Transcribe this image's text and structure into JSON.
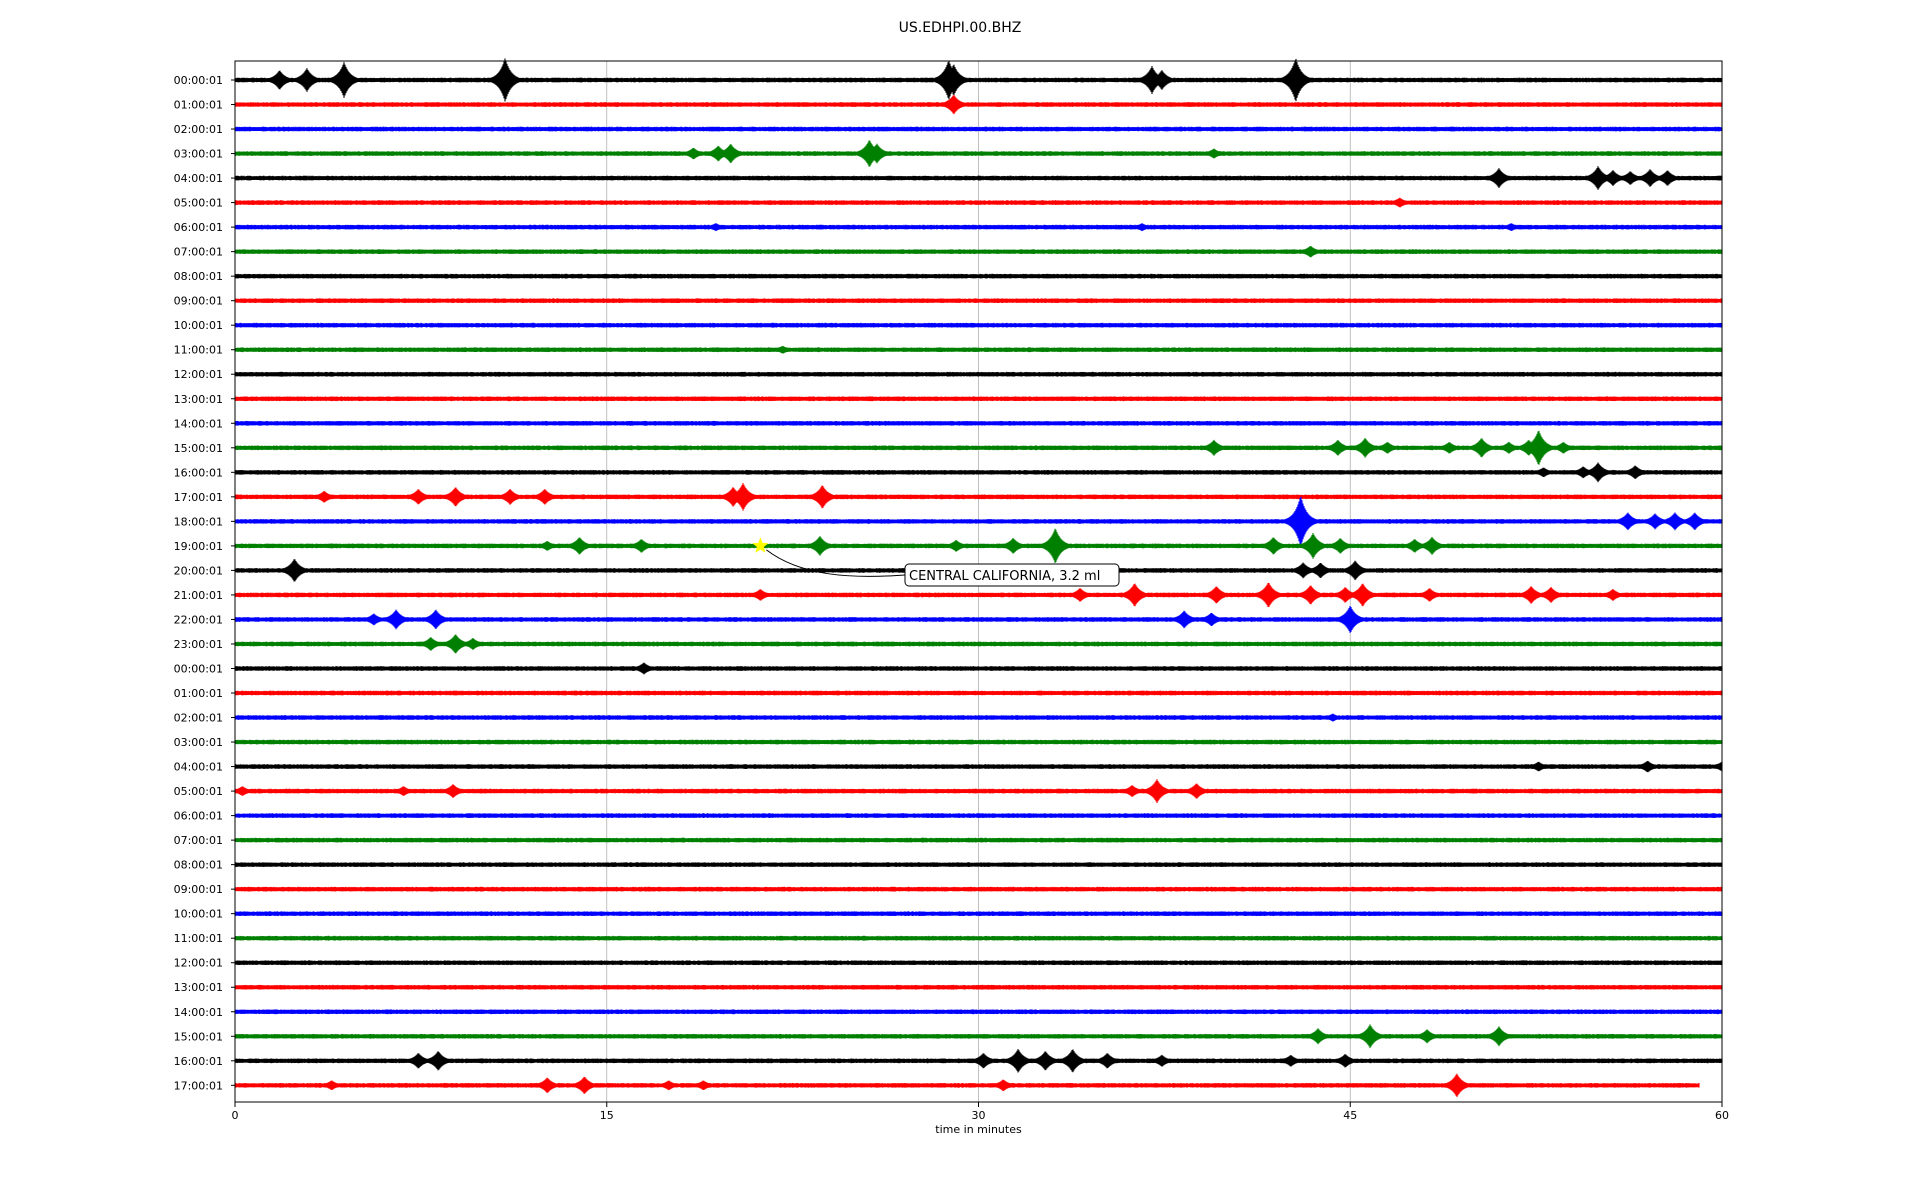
{
  "page": {
    "title": "US.EDHPI.00.BHZ"
  },
  "chart_data": {
    "type": "line",
    "title": "US.EDHPI.00.BHZ",
    "xlabel": "time in minutes",
    "ylabel": "",
    "xlim": [
      0,
      60
    ],
    "xticks": [
      0,
      15,
      30,
      45,
      60
    ],
    "grid": "vertical lines at 15, 30, 45",
    "colors": [
      "#000000",
      "#ff0000",
      "#0000ff",
      "#008000"
    ],
    "rows": [
      {
        "label": "00:00:01",
        "events": [
          [
            1.8,
            10
          ],
          [
            2.9,
            12
          ],
          [
            4.4,
            18
          ],
          [
            10.9,
            22
          ],
          [
            28.8,
            20
          ],
          [
            29.0,
            16
          ],
          [
            37.0,
            14
          ],
          [
            37.4,
            10
          ],
          [
            42.8,
            22
          ]
        ]
      },
      {
        "label": "01:00:01",
        "events": [
          [
            29.0,
            10
          ]
        ]
      },
      {
        "label": "02:00:01",
        "events": []
      },
      {
        "label": "03:00:01",
        "events": [
          [
            18.5,
            6
          ],
          [
            19.5,
            8
          ],
          [
            20.0,
            10
          ],
          [
            25.6,
            14
          ],
          [
            25.9,
            10
          ],
          [
            39.5,
            5
          ]
        ]
      },
      {
        "label": "04:00:01",
        "events": [
          [
            51.0,
            10
          ],
          [
            55.0,
            12
          ],
          [
            55.6,
            8
          ],
          [
            56.3,
            7
          ],
          [
            57.1,
            9
          ],
          [
            57.8,
            8
          ]
        ]
      },
      {
        "label": "05:00:01",
        "events": [
          [
            47.0,
            5
          ]
        ]
      },
      {
        "label": "06:00:01",
        "events": [
          [
            19.4,
            4
          ],
          [
            36.6,
            4
          ],
          [
            51.5,
            4
          ]
        ]
      },
      {
        "label": "07:00:01",
        "events": [
          [
            43.4,
            6
          ]
        ]
      },
      {
        "label": "08:00:01",
        "events": []
      },
      {
        "label": "09:00:01",
        "events": []
      },
      {
        "label": "10:00:01",
        "events": []
      },
      {
        "label": "11:00:01",
        "events": [
          [
            22.1,
            4
          ]
        ]
      },
      {
        "label": "12:00:01",
        "events": []
      },
      {
        "label": "13:00:01",
        "events": []
      },
      {
        "label": "14:00:01",
        "events": []
      },
      {
        "label": "15:00:01",
        "events": [
          [
            39.5,
            8
          ],
          [
            44.5,
            8
          ],
          [
            45.6,
            10
          ],
          [
            46.5,
            6
          ],
          [
            49.0,
            6
          ],
          [
            50.3,
            10
          ],
          [
            51.4,
            6
          ],
          [
            52.2,
            8
          ],
          [
            52.6,
            18
          ],
          [
            53.6,
            6
          ]
        ]
      },
      {
        "label": "16:00:01",
        "events": [
          [
            52.8,
            5
          ],
          [
            54.4,
            6
          ],
          [
            55.0,
            10
          ],
          [
            56.5,
            7
          ]
        ]
      },
      {
        "label": "17:00:01",
        "events": [
          [
            3.6,
            6
          ],
          [
            7.4,
            8
          ],
          [
            8.9,
            10
          ],
          [
            11.1,
            8
          ],
          [
            12.5,
            8
          ],
          [
            20.1,
            10
          ],
          [
            20.5,
            14
          ],
          [
            23.7,
            12
          ]
        ]
      },
      {
        "label": "18:00:01",
        "events": [
          [
            43.0,
            26
          ],
          [
            56.2,
            9
          ],
          [
            57.3,
            8
          ],
          [
            58.1,
            9
          ],
          [
            58.9,
            9
          ]
        ]
      },
      {
        "label": "19:00:01",
        "events": [
          [
            12.6,
            5
          ],
          [
            13.9,
            9
          ],
          [
            16.4,
            7
          ],
          [
            23.6,
            10
          ],
          [
            29.1,
            6
          ],
          [
            31.4,
            8
          ],
          [
            33.1,
            18
          ],
          [
            41.9,
            9
          ],
          [
            43.5,
            13
          ],
          [
            44.6,
            8
          ],
          [
            47.6,
            7
          ],
          [
            48.3,
            9
          ]
        ]
      },
      {
        "label": "20:00:01",
        "events": [
          [
            2.4,
            12
          ],
          [
            43.1,
            8
          ],
          [
            43.8,
            8
          ],
          [
            45.2,
            10
          ]
        ]
      },
      {
        "label": "21:00:01",
        "events": [
          [
            21.2,
            6
          ],
          [
            34.1,
            7
          ],
          [
            36.3,
            12
          ],
          [
            39.6,
            9
          ],
          [
            41.7,
            13
          ],
          [
            43.4,
            10
          ],
          [
            44.8,
            8
          ],
          [
            45.5,
            12
          ],
          [
            48.2,
            7
          ],
          [
            52.3,
            9
          ],
          [
            53.1,
            8
          ],
          [
            55.6,
            6
          ]
        ]
      },
      {
        "label": "22:00:01",
        "events": [
          [
            5.6,
            6
          ],
          [
            6.5,
            10
          ],
          [
            8.1,
            10
          ],
          [
            38.3,
            9
          ],
          [
            39.4,
            7
          ],
          [
            45.0,
            14
          ]
        ]
      },
      {
        "label": "23:00:01",
        "events": [
          [
            7.9,
            7
          ],
          [
            8.9,
            10
          ],
          [
            9.6,
            6
          ]
        ]
      },
      {
        "label": "00:00:01",
        "events": [
          [
            16.5,
            6
          ]
        ]
      },
      {
        "label": "01:00:01",
        "events": []
      },
      {
        "label": "02:00:01",
        "events": [
          [
            44.3,
            4
          ]
        ]
      },
      {
        "label": "03:00:01",
        "events": []
      },
      {
        "label": "04:00:01",
        "events": [
          [
            52.6,
            5
          ],
          [
            57.0,
            6
          ],
          [
            60.0,
            5
          ]
        ]
      },
      {
        "label": "05:00:01",
        "events": [
          [
            0.3,
            5
          ],
          [
            6.8,
            5
          ],
          [
            8.8,
            7
          ],
          [
            36.2,
            6
          ],
          [
            37.2,
            12
          ],
          [
            38.8,
            8
          ]
        ]
      },
      {
        "label": "06:00:01",
        "events": []
      },
      {
        "label": "07:00:01",
        "events": []
      },
      {
        "label": "08:00:01",
        "events": []
      },
      {
        "label": "09:00:01",
        "events": []
      },
      {
        "label": "10:00:01",
        "events": []
      },
      {
        "label": "11:00:01",
        "events": []
      },
      {
        "label": "12:00:01",
        "events": []
      },
      {
        "label": "13:00:01",
        "events": []
      },
      {
        "label": "14:00:01",
        "events": []
      },
      {
        "label": "15:00:01",
        "events": [
          [
            43.7,
            8
          ],
          [
            45.8,
            12
          ],
          [
            48.1,
            7
          ],
          [
            51.0,
            10
          ]
        ]
      },
      {
        "label": "16:00:01",
        "events": [
          [
            7.4,
            8
          ],
          [
            8.2,
            10
          ],
          [
            30.2,
            8
          ],
          [
            31.6,
            12
          ],
          [
            32.7,
            10
          ],
          [
            33.8,
            12
          ],
          [
            35.2,
            8
          ],
          [
            37.4,
            6
          ],
          [
            42.6,
            6
          ],
          [
            44.8,
            7
          ]
        ]
      },
      {
        "label": "17:00:01",
        "events": [
          [
            3.9,
            5
          ],
          [
            12.6,
            8
          ],
          [
            14.1,
            9
          ],
          [
            17.5,
            5
          ],
          [
            18.9,
            5
          ],
          [
            31.0,
            6
          ],
          [
            49.3,
            12
          ]
        ],
        "end": 59.1
      }
    ],
    "annotation": {
      "text": "CENTRAL CALIFORNIA, 3.2 ml",
      "row": "19:00:01",
      "x": 21.2,
      "marker": "star",
      "marker_color": "#ffff00"
    }
  }
}
